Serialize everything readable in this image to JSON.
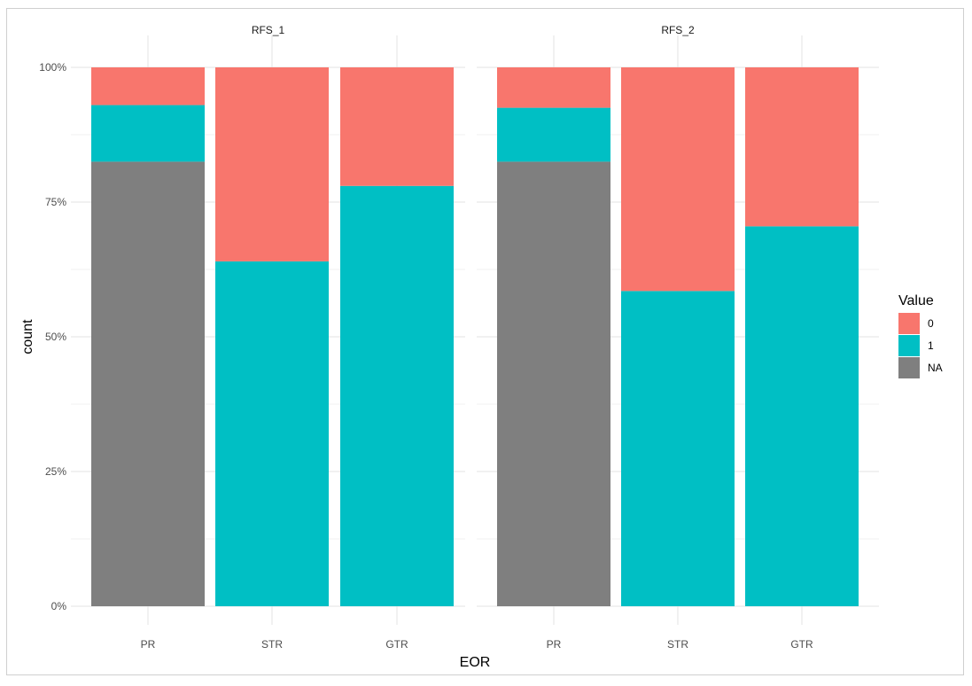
{
  "chart_data": {
    "type": "bar",
    "stacked": "fill",
    "xlabel": "EOR",
    "ylabel": "count",
    "ylim": [
      0,
      1
    ],
    "y_ticks": [
      "0%",
      "25%",
      "50%",
      "75%",
      "100%"
    ],
    "categories": [
      "PR",
      "STR",
      "GTR"
    ],
    "facets": [
      "RFS_1",
      "RFS_2"
    ],
    "legend": {
      "title": "Value",
      "position": "right",
      "entries": [
        {
          "label": "0",
          "color": "#F8766D"
        },
        {
          "label": "1",
          "color": "#00BFC4"
        },
        {
          "label": "NA",
          "color": "#7F7F7F"
        }
      ]
    },
    "grid": true,
    "panels": [
      {
        "facet": "RFS_1",
        "series": [
          {
            "name": "0",
            "values": [
              0.07,
              0.36,
              0.22
            ]
          },
          {
            "name": "1",
            "values": [
              0.105,
              0.64,
              0.78
            ]
          },
          {
            "name": "NA",
            "values": [
              0.825,
              0,
              0
            ]
          }
        ]
      },
      {
        "facet": "RFS_2",
        "series": [
          {
            "name": "0",
            "values": [
              0.075,
              0.415,
              0.295
            ]
          },
          {
            "name": "1",
            "values": [
              0.1,
              0.585,
              0.705
            ]
          },
          {
            "name": "NA",
            "values": [
              0.825,
              0,
              0
            ]
          }
        ]
      }
    ]
  }
}
